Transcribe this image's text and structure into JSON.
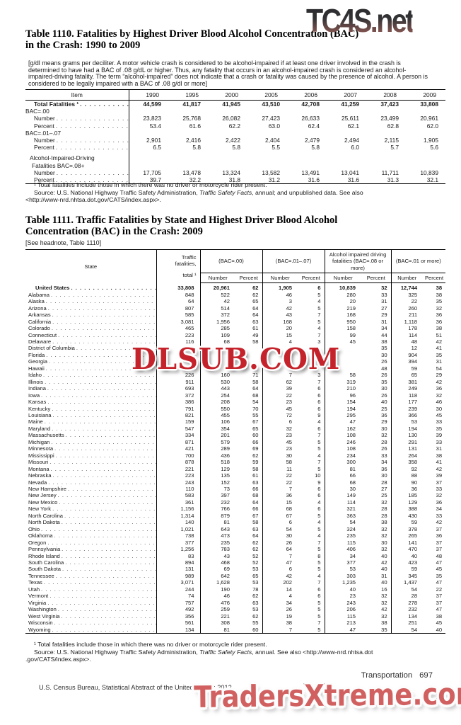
{
  "watermarks": {
    "top": "TC4S.net",
    "middle": "DLSUB.COM",
    "bottom": "TradersXtreme.com"
  },
  "table1110": {
    "title_line1": "Table 1110. Fatalities by Highest Driver Blood Alcohol Concentration (BAC)",
    "title_line2": "in the Crash: 1990 to 2009",
    "headnote": "[g/dl means grams per deciliter. A motor vehicle crash is considered to be alcohol-impaired if at least one driver involved in the crash is determined to have had a BAC of .08 g/dL or higher. Thus, any fatality that occurs in an alcohol-impaired crash is considered an alcohol-impaired-driving fatality. The term “alcohol-impaired” does not indicate that a crash or fatality was caused by the presence of alcohol. A person is considered to be legally impaired with a BAC of .08 g/dl or more]",
    "col_header": "Item",
    "years": [
      "1990",
      "1995",
      "2000",
      "2005",
      "2006",
      "2007",
      "2008",
      "2009"
    ],
    "rows": [
      {
        "label": "Total Fatalities ¹",
        "bold": true,
        "indent": 12,
        "dots": true,
        "values": [
          "44,599",
          "41,817",
          "41,945",
          "43,510",
          "42,708",
          "41,259",
          "37,423",
          "33,808"
        ]
      },
      {
        "label": "BAC=.00",
        "indent": 0,
        "dots": false,
        "values": []
      },
      {
        "label": "Number",
        "indent": 12,
        "dots": true,
        "values": [
          "23,823",
          "25,768",
          "26,082",
          "27,423",
          "26,633",
          "25,611",
          "23,499",
          "20,961"
        ]
      },
      {
        "label": "Percent",
        "indent": 12,
        "dots": true,
        "values": [
          "53.4",
          "61.6",
          "62.2",
          "63.0",
          "62.4",
          "62.1",
          "62.8",
          "62.0"
        ]
      },
      {
        "label": "BAC=.01–.07",
        "indent": 0,
        "dots": false,
        "values": []
      },
      {
        "label": "Number",
        "indent": 12,
        "dots": true,
        "values": [
          "2,901",
          "2,416",
          "2,422",
          "2,404",
          "2,479",
          "2,494",
          "2,115",
          "1,905"
        ]
      },
      {
        "label": "Percent",
        "indent": 12,
        "dots": true,
        "values": [
          "6.5",
          "5.8",
          "5.8",
          "5.5",
          "5.8",
          "6.0",
          "5.7",
          "5.6"
        ]
      },
      {
        "label": "Alcohol-Impaired-Driving",
        "indent": 6,
        "dots": false,
        "values": [],
        "gap_before": true
      },
      {
        "label": "Fatalities BAC=.08+",
        "indent": 9,
        "dots": false,
        "values": []
      },
      {
        "label": "Number",
        "indent": 12,
        "dots": true,
        "values": [
          "17,705",
          "13,478",
          "13,324",
          "13,582",
          "13,491",
          "13,041",
          "11,711",
          "10,839"
        ]
      },
      {
        "label": "Percent",
        "indent": 12,
        "dots": true,
        "values": [
          "39.7",
          "32.2",
          "31.8",
          "31.2",
          "31.6",
          "31.6",
          "31.3",
          "32.1"
        ]
      }
    ],
    "footnote": "¹ Total fatalities include those in which there was no driver or motorcycle rider present.",
    "source_prefix": "Source: U.S. National Highway Traffic Safety Administration, ",
    "source_italic": "Traffic Safety Facts",
    "source_suffix": ", annual; and unpublished data. See also",
    "source_line2": "<http://www-nrd.nhtsa.dot.gov/CATS/index.aspx>."
  },
  "table1111": {
    "title_line1": "Table 1111. Traffic Fatalities by State and Highest Driver Blood Alcohol",
    "title_line2": "Concentration (BAC) in the Crash: 2009",
    "headnote": "[See headnote, Table 1110]",
    "col_state": "State",
    "col_total_lines": [
      "Traffic",
      "fatalities,",
      "total ¹"
    ],
    "groups": [
      "(BAC=.00)",
      "(BAC=.01–.07)",
      "Alcohol impaired driving fatalities (BAC=.08 or more)",
      "(BAC=.01 or more)"
    ],
    "subcols": [
      "Number",
      "Percent"
    ],
    "rows": [
      {
        "state": "United States",
        "bold": true,
        "us": true,
        "values": [
          "33,808",
          "20,961",
          "62",
          "1,905",
          "6",
          "10,839",
          "32",
          "12,744",
          "38"
        ]
      },
      {
        "state": "Alabama",
        "values": [
          "848",
          "522",
          "62",
          "46",
          "5",
          "280",
          "33",
          "325",
          "38"
        ]
      },
      {
        "state": "Alaska",
        "values": [
          "64",
          "42",
          "65",
          "3",
          "4",
          "20",
          "31",
          "22",
          "35"
        ]
      },
      {
        "state": "Arizona",
        "values": [
          "807",
          "514",
          "64",
          "42",
          "5",
          "219",
          "27",
          "260",
          "32"
        ]
      },
      {
        "state": "Arkansas",
        "values": [
          "585",
          "372",
          "64",
          "43",
          "7",
          "168",
          "29",
          "211",
          "36"
        ]
      },
      {
        "state": "California",
        "values": [
          "3,081",
          "1,956",
          "63",
          "168",
          "5",
          "950",
          "31",
          "1,118",
          "36"
        ]
      },
      {
        "state": "Colorado",
        "values": [
          "465",
          "285",
          "61",
          "20",
          "4",
          "158",
          "34",
          "178",
          "38"
        ]
      },
      {
        "state": "Connecticut",
        "values": [
          "223",
          "109",
          "49",
          "15",
          "7",
          "99",
          "44",
          "114",
          "51"
        ]
      },
      {
        "state": "Delaware",
        "values": [
          "116",
          "68",
          "58",
          "4",
          "3",
          "45",
          "38",
          "48",
          "42"
        ]
      },
      {
        "state": "District of Columbia",
        "values": [
          "",
          "",
          "",
          "2",
          "",
          "",
          "35",
          "12",
          "41"
        ]
      },
      {
        "state": "Florida",
        "values": [
          "",
          "",
          "",
          "13",
          "",
          "",
          "30",
          "904",
          "35"
        ]
      },
      {
        "state": "Georgia",
        "values": [
          "",
          "",
          "",
          "",
          "",
          "",
          "26",
          "394",
          "31"
        ]
      },
      {
        "state": "Hawaii",
        "values": [
          "",
          "",
          "",
          "",
          "",
          "",
          "48",
          "59",
          "54"
        ]
      },
      {
        "state": "Idaho",
        "values": [
          "226",
          "160",
          "71",
          "7",
          "3",
          "58",
          "26",
          "65",
          "29"
        ]
      },
      {
        "state": "Illinois",
        "values": [
          "911",
          "530",
          "58",
          "62",
          "7",
          "319",
          "35",
          "381",
          "42"
        ]
      },
      {
        "state": "Indiana",
        "values": [
          "693",
          "443",
          "64",
          "39",
          "6",
          "210",
          "30",
          "249",
          "36"
        ]
      },
      {
        "state": "Iowa",
        "values": [
          "372",
          "254",
          "68",
          "22",
          "6",
          "96",
          "26",
          "118",
          "32"
        ]
      },
      {
        "state": "Kansas",
        "values": [
          "386",
          "208",
          "54",
          "23",
          "6",
          "154",
          "40",
          "177",
          "46"
        ]
      },
      {
        "state": "Kentucky",
        "values": [
          "791",
          "550",
          "70",
          "45",
          "6",
          "194",
          "25",
          "239",
          "30"
        ]
      },
      {
        "state": "Louisiana",
        "values": [
          "821",
          "455",
          "55",
          "72",
          "9",
          "295",
          "36",
          "366",
          "45"
        ]
      },
      {
        "state": "Maine",
        "values": [
          "159",
          "106",
          "67",
          "6",
          "4",
          "47",
          "29",
          "53",
          "33"
        ]
      },
      {
        "state": "Maryland",
        "values": [
          "547",
          "354",
          "65",
          "32",
          "6",
          "162",
          "30",
          "194",
          "35"
        ]
      },
      {
        "state": "Massachusetts",
        "values": [
          "334",
          "201",
          "60",
          "23",
          "7",
          "108",
          "32",
          "130",
          "39"
        ]
      },
      {
        "state": "Michigan",
        "values": [
          "871",
          "579",
          "66",
          "45",
          "5",
          "246",
          "28",
          "291",
          "33"
        ]
      },
      {
        "state": "Minnesota",
        "values": [
          "421",
          "289",
          "69",
          "23",
          "5",
          "108",
          "26",
          "131",
          "31"
        ]
      },
      {
        "state": "Mississippi",
        "values": [
          "700",
          "436",
          "62",
          "30",
          "4",
          "234",
          "33",
          "264",
          "38"
        ]
      },
      {
        "state": "Missouri",
        "values": [
          "878",
          "518",
          "59",
          "58",
          "7",
          "300",
          "34",
          "358",
          "41"
        ]
      },
      {
        "state": "Montana",
        "values": [
          "221",
          "129",
          "58",
          "11",
          "5",
          "81",
          "36",
          "92",
          "42"
        ]
      },
      {
        "state": "Nebraska",
        "values": [
          "223",
          "135",
          "61",
          "22",
          "10",
          "66",
          "30",
          "88",
          "39"
        ]
      },
      {
        "state": "Nevada",
        "values": [
          "243",
          "152",
          "63",
          "22",
          "9",
          "68",
          "28",
          "90",
          "37"
        ]
      },
      {
        "state": "New Hampshire",
        "values": [
          "110",
          "73",
          "66",
          "7",
          "6",
          "30",
          "27",
          "36",
          "33"
        ]
      },
      {
        "state": "New Jersey",
        "values": [
          "583",
          "397",
          "68",
          "36",
          "6",
          "149",
          "25",
          "185",
          "32"
        ]
      },
      {
        "state": "New Mexico",
        "values": [
          "361",
          "232",
          "64",
          "15",
          "4",
          "114",
          "32",
          "129",
          "36"
        ]
      },
      {
        "state": "New York",
        "values": [
          "1,156",
          "766",
          "66",
          "68",
          "6",
          "321",
          "28",
          "388",
          "34"
        ]
      },
      {
        "state": "North Carolina",
        "values": [
          "1,314",
          "879",
          "67",
          "67",
          "5",
          "363",
          "28",
          "430",
          "33"
        ]
      },
      {
        "state": "North Dakota",
        "values": [
          "140",
          "81",
          "58",
          "6",
          "4",
          "54",
          "38",
          "59",
          "42"
        ]
      },
      {
        "state": "Ohio",
        "values": [
          "1,021",
          "643",
          "63",
          "54",
          "5",
          "324",
          "32",
          "378",
          "37"
        ]
      },
      {
        "state": "Oklahoma",
        "values": [
          "738",
          "473",
          "64",
          "30",
          "4",
          "235",
          "32",
          "265",
          "36"
        ]
      },
      {
        "state": "Oregon",
        "values": [
          "377",
          "235",
          "62",
          "26",
          "7",
          "115",
          "30",
          "141",
          "37"
        ]
      },
      {
        "state": "Pennsylvania",
        "values": [
          "1,256",
          "783",
          "62",
          "64",
          "5",
          "406",
          "32",
          "470",
          "37"
        ]
      },
      {
        "state": "Rhode Island",
        "values": [
          "83",
          "43",
          "52",
          "7",
          "8",
          "34",
          "40",
          "40",
          "48"
        ]
      },
      {
        "state": "South Carolina",
        "values": [
          "894",
          "468",
          "52",
          "47",
          "5",
          "377",
          "42",
          "423",
          "47"
        ]
      },
      {
        "state": "South Dakota",
        "values": [
          "131",
          "69",
          "53",
          "6",
          "5",
          "53",
          "40",
          "59",
          "45"
        ]
      },
      {
        "state": "Tennessee",
        "values": [
          "989",
          "642",
          "65",
          "42",
          "4",
          "303",
          "31",
          "345",
          "35"
        ]
      },
      {
        "state": "Texas",
        "values": [
          "3,071",
          "1,628",
          "53",
          "202",
          "7",
          "1,235",
          "40",
          "1,437",
          "47"
        ]
      },
      {
        "state": "Utah",
        "values": [
          "244",
          "190",
          "78",
          "14",
          "6",
          "40",
          "16",
          "54",
          "22"
        ]
      },
      {
        "state": "Vermont",
        "values": [
          "74",
          "46",
          "62",
          "4",
          "6",
          "23",
          "32",
          "28",
          "37"
        ]
      },
      {
        "state": "Virginia",
        "values": [
          "757",
          "476",
          "63",
          "34",
          "5",
          "243",
          "32",
          "278",
          "37"
        ]
      },
      {
        "state": "Washington",
        "values": [
          "492",
          "259",
          "53",
          "26",
          "5",
          "206",
          "42",
          "232",
          "47"
        ]
      },
      {
        "state": "West Virginia",
        "values": [
          "356",
          "221",
          "62",
          "19",
          "5",
          "115",
          "32",
          "134",
          "38"
        ]
      },
      {
        "state": "Wisconsin",
        "values": [
          "561",
          "308",
          "55",
          "38",
          "7",
          "213",
          "38",
          "251",
          "45"
        ]
      },
      {
        "state": "Wyoming",
        "values": [
          "134",
          "81",
          "60",
          "7",
          "5",
          "47",
          "35",
          "54",
          "40"
        ]
      }
    ],
    "footnote": "¹ Total fatalities include those in which there was no driver or motorcycle rider present.",
    "source_prefix": "Source: U.S. National Highway Traffic Safety Administration, ",
    "source_italic": "Traffic Safety Facts",
    "source_suffix": ", annual. See also <http://www-nrd.nhtsa.dot",
    "source_line2": ".gov/CATS/index.aspx>."
  },
  "footer": {
    "section": "Transportation",
    "page_number": "697",
    "credit": "U.S. Census Bureau, Statistical Abstract of the United States: 2012"
  }
}
